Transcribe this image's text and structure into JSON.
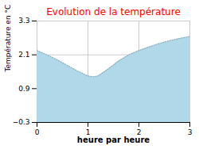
{
  "chart_data": {
    "type": "area",
    "title": "Evolution de la température",
    "xlabel": "heure par heure",
    "ylabel": "Température en °C",
    "x": [
      0,
      0.2,
      0.4,
      0.6,
      0.8,
      1.0,
      1.1,
      1.2,
      1.4,
      1.6,
      1.8,
      2.0,
      2.2,
      2.4,
      2.6,
      2.8,
      3.0
    ],
    "values": [
      2.25,
      2.1,
      1.92,
      1.72,
      1.52,
      1.35,
      1.32,
      1.35,
      1.6,
      1.88,
      2.1,
      2.25,
      2.38,
      2.5,
      2.6,
      2.68,
      2.75
    ],
    "color": "#b0d8e8",
    "line_style": "dotted",
    "xlim": [
      0,
      3
    ],
    "ylim": [
      -0.3,
      3.3
    ],
    "xticks": [
      0,
      1,
      2,
      3
    ],
    "yticks": [
      -0.3,
      0.9,
      2.1,
      3.3
    ],
    "grid": true
  }
}
